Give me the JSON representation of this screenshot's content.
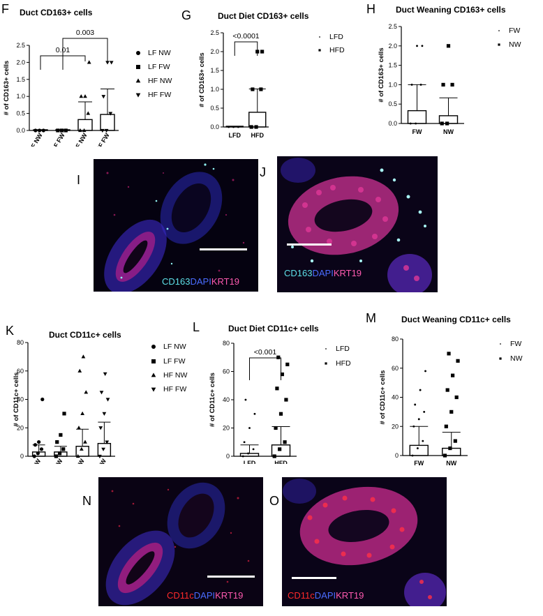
{
  "panel_letters": {
    "F": "F",
    "G": "G",
    "H": "H",
    "I": "I",
    "J": "J",
    "K": "K",
    "L": "L",
    "M": "M",
    "N": "N",
    "O": "O"
  },
  "chart_data": [
    {
      "id": "F",
      "type": "bar",
      "title": "Duct CD163+ cells",
      "ylabel": "# of CD163+ cells",
      "ylim": [
        0,
        2.5
      ],
      "yticks": [
        "0.0",
        "0.5",
        "1.0",
        "1.5",
        "2.0",
        "2.5"
      ],
      "ytick_values": [
        0,
        0.5,
        1,
        1.5,
        2,
        2.5
      ],
      "categories": [
        "LF NW",
        "LF FW",
        "HF NW",
        "HF FW"
      ],
      "values": [
        0,
        0,
        0.32,
        0.47
      ],
      "errors": [
        0,
        0,
        0.52,
        0.75
      ],
      "points": [
        [
          0,
          0,
          0
        ],
        [
          0,
          0,
          0
        ],
        [
          0,
          0,
          0.5,
          1,
          1,
          2
        ],
        [
          0,
          0,
          0.5,
          1,
          2,
          2
        ]
      ],
      "markers": [
        "circle",
        "square",
        "triangle-up",
        "triangle-down"
      ],
      "legend": [
        "LF NW",
        "LF FW",
        "HF NW",
        "HF FW"
      ],
      "annotations": [
        {
          "from": 0,
          "to": 2,
          "text": "0.01"
        },
        {
          "from": 1,
          "to": 3,
          "text": "0.003"
        }
      ]
    },
    {
      "id": "G",
      "type": "bar",
      "title": "Duct Diet CD163+ cells",
      "ylabel": "# of CD163+ cells",
      "ylim": [
        0,
        2.5
      ],
      "yticks": [
        "0.0",
        "0.5",
        "1.0",
        "1.5",
        "2.0",
        "2.5"
      ],
      "ytick_values": [
        0,
        0.5,
        1,
        1.5,
        2,
        2.5
      ],
      "categories": [
        "LFD",
        "HFD"
      ],
      "values": [
        0,
        0.39
      ],
      "errors": [
        0,
        0.62
      ],
      "points": [
        [
          0,
          0,
          0
        ],
        [
          0,
          0,
          1,
          1,
          2,
          2
        ]
      ],
      "markers": [
        "dot",
        "square"
      ],
      "legend": [
        "LFD",
        "HFD"
      ],
      "annotations": [
        {
          "from": 0,
          "to": 1,
          "text": "<0.0001"
        }
      ]
    },
    {
      "id": "H",
      "type": "bar",
      "title": "Duct Weaning CD163+ cells",
      "ylabel": "# of CD163+ cells",
      "ylim": [
        0,
        2.5
      ],
      "yticks": [
        "0.0",
        "0.5",
        "1.0",
        "1.5",
        "2.0",
        "2.5"
      ],
      "ytick_values": [
        0,
        0.5,
        1,
        1.5,
        2,
        2.5
      ],
      "categories": [
        "FW",
        "NW"
      ],
      "values": [
        0.33,
        0.2
      ],
      "errors": [
        0.67,
        0.46
      ],
      "points": [
        [
          0,
          0,
          1,
          1,
          2,
          2
        ],
        [
          0,
          0,
          1,
          1,
          2
        ]
      ],
      "markers": [
        "dot",
        "square"
      ],
      "legend": [
        "FW",
        "NW"
      ],
      "annotations": []
    },
    {
      "id": "K",
      "type": "bar",
      "title": "Duct CD11c+ cells",
      "ylabel": "# of CD11c+ cells",
      "ylim": [
        0,
        80
      ],
      "yticks": [
        "0",
        "20",
        "40",
        "60",
        "80"
      ],
      "ytick_values": [
        0,
        20,
        40,
        60,
        80
      ],
      "categories": [
        "LF NW",
        "LF FW",
        "HF NW",
        "HF FW"
      ],
      "values": [
        3,
        3,
        7,
        9
      ],
      "errors": [
        5,
        4,
        12,
        15
      ],
      "points": [
        [
          0,
          2,
          5,
          8,
          10,
          40
        ],
        [
          0,
          2,
          5,
          10,
          15,
          30
        ],
        [
          0,
          5,
          10,
          20,
          30,
          45,
          60,
          70
        ],
        [
          0,
          5,
          10,
          20,
          30,
          40,
          45,
          58
        ]
      ],
      "markers": [
        "circle",
        "square",
        "triangle-up",
        "triangle-down"
      ],
      "legend": [
        "LF NW",
        "LF FW",
        "HF NW",
        "HF FW"
      ],
      "annotations": []
    },
    {
      "id": "L",
      "type": "bar",
      "title": "Duct Diet CD11c+ cells",
      "ylabel": "# of CD11c+ cells",
      "ylim": [
        0,
        80
      ],
      "yticks": [
        "0",
        "20",
        "40",
        "60",
        "80"
      ],
      "ytick_values": [
        0,
        20,
        40,
        60,
        80
      ],
      "categories": [
        "LFD",
        "HFD"
      ],
      "values": [
        2,
        8
      ],
      "errors": [
        6,
        13
      ],
      "points": [
        [
          0,
          2,
          5,
          10,
          20,
          30,
          40
        ],
        [
          0,
          5,
          10,
          20,
          30,
          40,
          48,
          58,
          65,
          70
        ]
      ],
      "markers": [
        "dot",
        "square"
      ],
      "legend": [
        "LFD",
        "HFD"
      ],
      "annotations": [
        {
          "from": 0,
          "to": 1,
          "text": "<0.001"
        }
      ]
    },
    {
      "id": "M",
      "type": "bar",
      "title": "Duct Weaning CD11c+ cells",
      "ylabel": "# of CD11c+ cells",
      "ylim": [
        0,
        80
      ],
      "yticks": [
        "0",
        "20",
        "40",
        "60",
        "80"
      ],
      "ytick_values": [
        0,
        20,
        40,
        60,
        80
      ],
      "categories": [
        "FW",
        "NW"
      ],
      "values": [
        7,
        5
      ],
      "errors": [
        13,
        11
      ],
      "points": [
        [
          0,
          5,
          10,
          20,
          25,
          30,
          35,
          45,
          58
        ],
        [
          0,
          5,
          10,
          20,
          30,
          40,
          45,
          55,
          65,
          70
        ]
      ],
      "markers": [
        "dot",
        "square"
      ],
      "legend": [
        "FW",
        "NW"
      ],
      "annotations": []
    }
  ],
  "micrographs": {
    "I": {
      "stain": [
        {
          "text": "CD163",
          "color": "#5ee0e8"
        },
        {
          "text": "DAPI",
          "color": "#4a6cff"
        },
        {
          "text": "KRT19",
          "color": "#ff5ab0"
        }
      ]
    },
    "J": {
      "stain": [
        {
          "text": "CD163",
          "color": "#5ee0e8"
        },
        {
          "text": "DAPI",
          "color": "#4a6cff"
        },
        {
          "text": "KRT19",
          "color": "#ff5ab0"
        }
      ]
    },
    "N": {
      "stain": [
        {
          "text": "CD11c",
          "color": "#ff2a2a"
        },
        {
          "text": "DAPI",
          "color": "#4a6cff"
        },
        {
          "text": "KRT19",
          "color": "#ff5ab0"
        }
      ]
    },
    "O": {
      "stain": [
        {
          "text": "CD11c",
          "color": "#ff2a2a"
        },
        {
          "text": "DAPI",
          "color": "#4a6cff"
        },
        {
          "text": "KRT19",
          "color": "#ff5ab0"
        }
      ]
    }
  }
}
